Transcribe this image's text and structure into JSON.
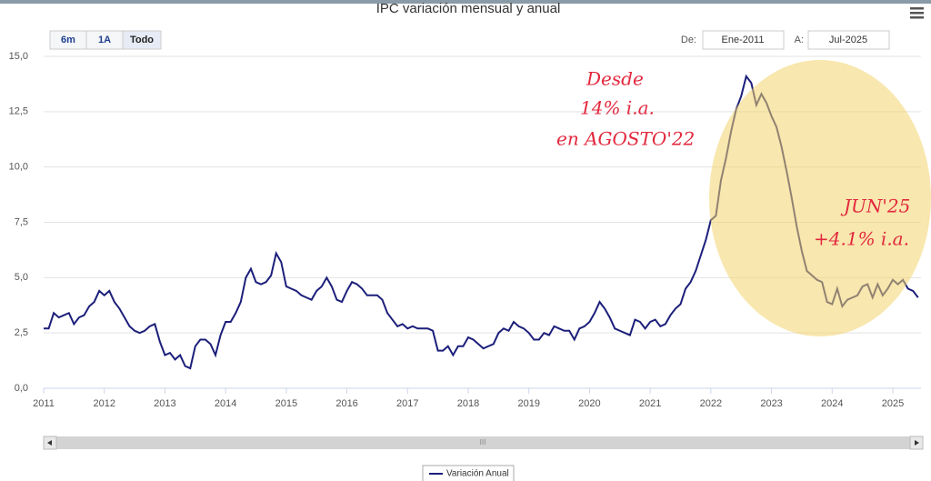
{
  "ui": {
    "buttons": [
      "6m",
      "1A",
      "Todo"
    ],
    "from_label": "De:",
    "from_value": "Ene-2011",
    "to_label": "A:",
    "to_value": "Jul-2025",
    "scroll_grip": "III"
  },
  "chart_data": {
    "type": "line",
    "title": "IPC variación mensual y anual",
    "categories": [
      "2011",
      null,
      null,
      null,
      null,
      null,
      null,
      null,
      null,
      null,
      null,
      null,
      "2012",
      null,
      null,
      null,
      null,
      null,
      null,
      null,
      null,
      null,
      null,
      null,
      "2013",
      null,
      null,
      null,
      null,
      null,
      null,
      null,
      null,
      null,
      null,
      null,
      "2014",
      null,
      null,
      null,
      null,
      null,
      null,
      null,
      null,
      null,
      null,
      null,
      "2015",
      null,
      null,
      null,
      null,
      null,
      null,
      null,
      null,
      null,
      null,
      null,
      "2016",
      null,
      null,
      null,
      null,
      null,
      null,
      null,
      null,
      null,
      null,
      null,
      "2017",
      null,
      null,
      null,
      null,
      null,
      null,
      null,
      null,
      null,
      null,
      null,
      "2018",
      null,
      null,
      null,
      null,
      null,
      null,
      null,
      null,
      null,
      null,
      null,
      "2019",
      null,
      null,
      null,
      null,
      null,
      null,
      null,
      null,
      null,
      null,
      null,
      "2020",
      null,
      null,
      null,
      null,
      null,
      null,
      null,
      null,
      null,
      null,
      null,
      "2021",
      null,
      null,
      null,
      null,
      null,
      null,
      null,
      null,
      null,
      null,
      null,
      "2022",
      null,
      null,
      null,
      null,
      null,
      null,
      null,
      null,
      null,
      null,
      null,
      "2023",
      null,
      null,
      null,
      null,
      null,
      null,
      null,
      null,
      null,
      null,
      null,
      "2024",
      null,
      null,
      null,
      null,
      null,
      null,
      null,
      null,
      null,
      null,
      null,
      "2025",
      null,
      null,
      null,
      null,
      null
    ],
    "series": [
      {
        "name": "Variación Anual",
        "color": "#1c1f7a",
        "values": [
          2.7,
          2.7,
          3.4,
          3.2,
          3.3,
          3.4,
          2.9,
          3.2,
          3.3,
          3.7,
          3.9,
          4.4,
          4.2,
          4.4,
          3.9,
          3.6,
          3.2,
          2.8,
          2.6,
          2.5,
          2.6,
          2.8,
          2.9,
          2.1,
          1.5,
          1.6,
          1.3,
          1.5,
          1.0,
          0.9,
          1.9,
          2.2,
          2.2,
          2.0,
          1.5,
          2.4,
          3.0,
          3.0,
          3.4,
          3.9,
          5.0,
          5.4,
          4.8,
          4.7,
          4.8,
          5.1,
          6.1,
          5.7,
          4.6,
          4.5,
          4.4,
          4.2,
          4.1,
          4.0,
          4.4,
          4.6,
          5.0,
          4.6,
          4.0,
          3.9,
          4.4,
          4.8,
          4.7,
          4.5,
          4.2,
          4.2,
          4.2,
          4.0,
          3.4,
          3.1,
          2.8,
          2.9,
          2.7,
          2.8,
          2.7,
          2.7,
          2.7,
          2.6,
          1.7,
          1.7,
          1.9,
          1.5,
          1.9,
          1.9,
          2.3,
          2.2,
          2.0,
          1.8,
          1.9,
          2.0,
          2.5,
          2.7,
          2.6,
          3.0,
          2.8,
          2.7,
          2.5,
          2.2,
          2.2,
          2.5,
          2.4,
          2.8,
          2.7,
          2.6,
          2.6,
          2.2,
          2.7,
          2.8,
          3.0,
          3.4,
          3.9,
          3.6,
          3.2,
          2.7,
          2.6,
          2.5,
          2.4,
          3.1,
          3.0,
          2.7,
          3.0,
          3.1,
          2.8,
          2.9,
          3.3,
          3.6,
          3.8,
          4.5,
          4.8,
          5.3,
          6.0,
          6.7,
          7.6,
          7.8,
          9.4,
          10.4,
          11.6,
          12.6,
          13.2,
          14.1,
          13.8,
          12.8,
          13.3,
          12.9,
          12.3,
          11.8,
          10.9,
          9.8,
          8.6,
          7.3,
          6.2,
          5.3,
          5.1,
          4.9,
          4.8,
          3.9,
          3.8,
          4.5,
          3.7,
          4.0,
          4.1,
          4.2,
          4.6,
          4.7,
          4.1,
          4.7,
          4.2,
          4.5,
          4.9,
          4.7,
          4.9,
          4.5,
          4.4,
          4.1
        ]
      }
    ],
    "ylim": [
      0,
      15
    ],
    "yticks": [
      {
        "value": 0,
        "label": "0,0"
      },
      {
        "value": 2.5,
        "label": "2,5"
      },
      {
        "value": 5,
        "label": "5,0"
      },
      {
        "value": 7.5,
        "label": "7,5"
      },
      {
        "value": 10,
        "label": "10,0"
      },
      {
        "value": 12.5,
        "label": "12,5"
      },
      {
        "value": 15,
        "label": "15,0"
      }
    ],
    "grid": true,
    "annotations": [
      "Desde",
      "14% i.a.",
      "en AGOSTO'22",
      "JUN'25",
      "+4.1% i.a."
    ]
  }
}
